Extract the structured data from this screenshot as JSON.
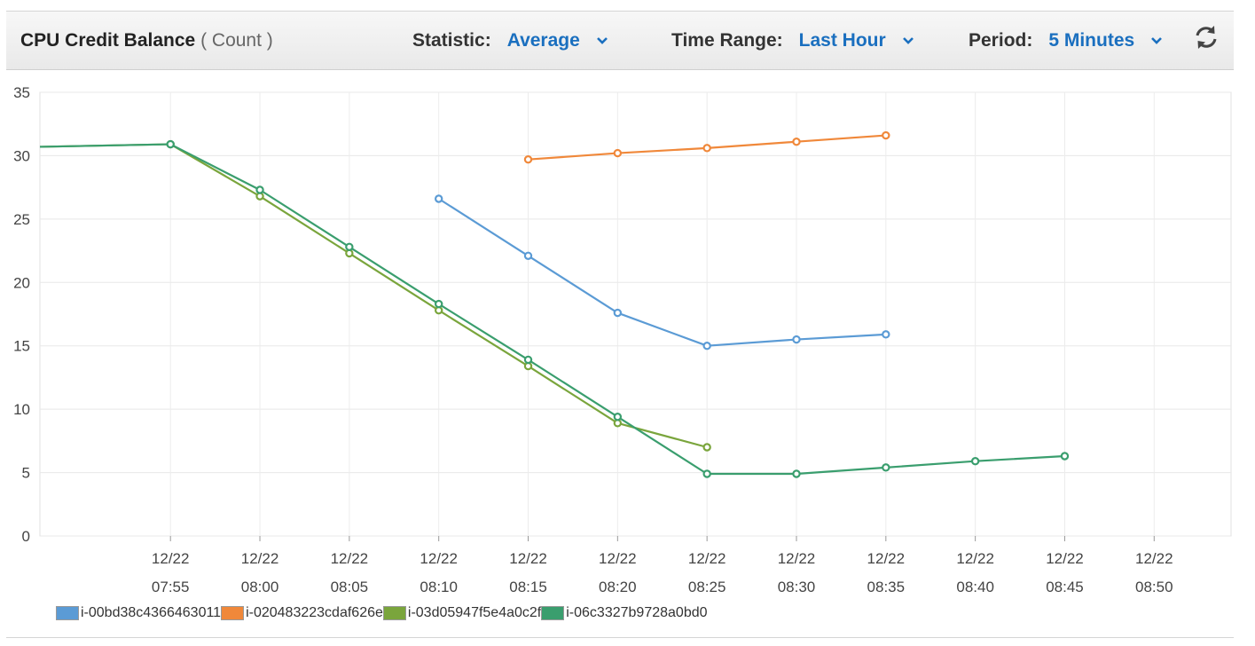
{
  "header": {
    "title": "CPU Credit Balance",
    "unit": "( Count )",
    "statistic_label": "Statistic:",
    "statistic_value": "Average",
    "timerange_label": "Time Range:",
    "timerange_value": "Last Hour",
    "period_label": "Period:",
    "period_value": "5 Minutes"
  },
  "chart_data": {
    "type": "line",
    "title": "CPU Credit Balance",
    "ylabel": "Count",
    "ylim": [
      0,
      35
    ],
    "yticks": [
      0,
      5,
      10,
      15,
      20,
      25,
      30,
      35
    ],
    "xlim": [
      -7.3,
      59.3
    ],
    "x_ticks": [
      0,
      5,
      10,
      15,
      20,
      25,
      30,
      35,
      40,
      45,
      50,
      55
    ],
    "x_tick_labels": [
      [
        "12/22",
        "07:55"
      ],
      [
        "12/22",
        "08:00"
      ],
      [
        "12/22",
        "08:05"
      ],
      [
        "12/22",
        "08:10"
      ],
      [
        "12/22",
        "08:15"
      ],
      [
        "12/22",
        "08:20"
      ],
      [
        "12/22",
        "08:25"
      ],
      [
        "12/22",
        "08:30"
      ],
      [
        "12/22",
        "08:35"
      ],
      [
        "12/22",
        "08:40"
      ],
      [
        "12/22",
        "08:45"
      ],
      [
        "12/22",
        "08:50"
      ]
    ],
    "x_unit_note": "minutes after 12/22 07:55",
    "grid": true,
    "legend_position": "bottom-left",
    "series": [
      {
        "name": "i-00bd38c4366463011",
        "color": "#5b9bd5",
        "x": [
          15,
          20,
          25,
          30,
          35,
          40
        ],
        "values": [
          26.6,
          22.1,
          17.6,
          15.0,
          15.5,
          15.9
        ]
      },
      {
        "name": "i-020483223cdaf626e",
        "color": "#f0883a",
        "x": [
          20,
          25,
          30,
          35,
          40
        ],
        "values": [
          29.7,
          30.2,
          30.6,
          31.1,
          31.6
        ]
      },
      {
        "name": "i-03d05947f5e4a0c2f",
        "color": "#7aa53c",
        "x": [
          -7.3,
          0,
          5,
          10,
          15,
          20,
          25,
          30
        ],
        "values": [
          30.7,
          30.9,
          26.8,
          22.3,
          17.8,
          13.4,
          8.9,
          7.0
        ]
      },
      {
        "name": "i-06c3327b9728a0bd0",
        "color": "#3a9e6e",
        "x": [
          -7.3,
          0,
          5,
          10,
          15,
          20,
          25,
          30,
          35,
          40,
          45,
          50
        ],
        "values": [
          30.7,
          30.9,
          27.3,
          22.8,
          18.3,
          13.9,
          9.4,
          4.9,
          4.9,
          5.4,
          5.9,
          6.3
        ]
      }
    ]
  }
}
